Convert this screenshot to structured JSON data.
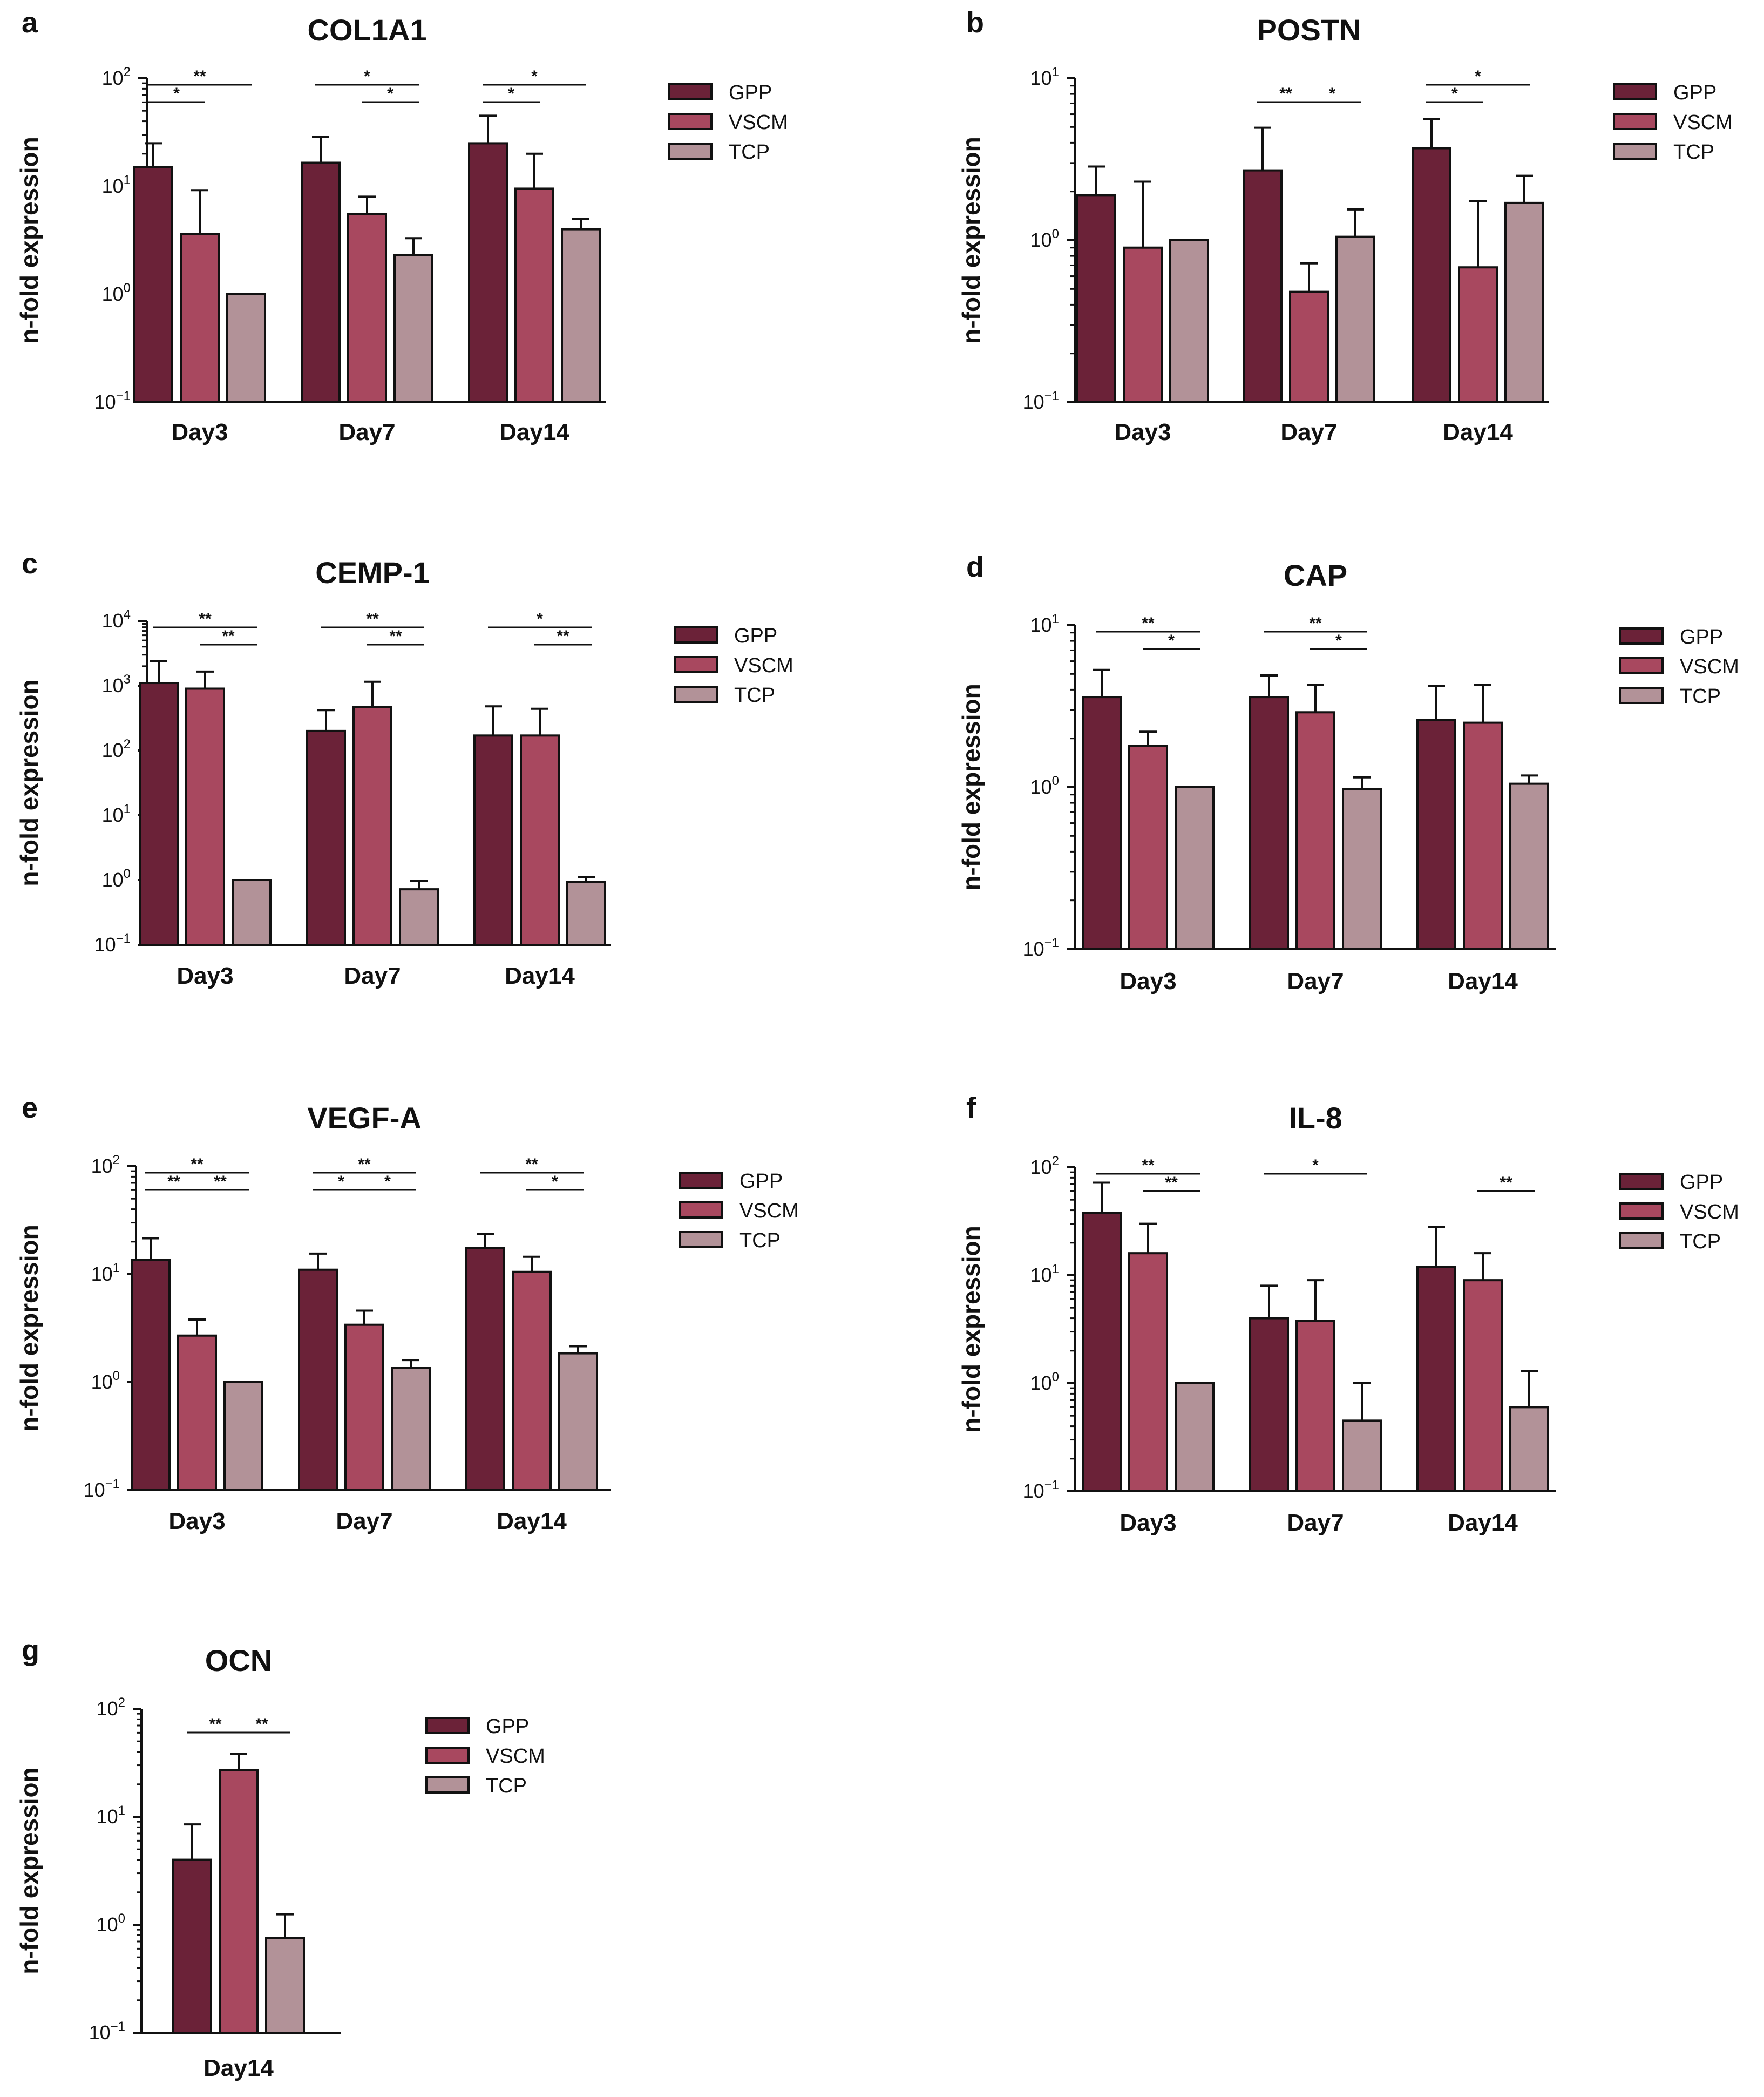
{
  "colors": {
    "GPP": "#6b2238",
    "VSCM": "#a8485f",
    "TCP": "#b29298"
  },
  "legend": [
    "GPP",
    "VSCM",
    "TCP"
  ],
  "chart_data": [
    {
      "panel": "a",
      "title": "COL1A1",
      "type": "bar",
      "ylabel": "n-fold expression",
      "yscale": "log",
      "ylim": [
        0.1,
        100
      ],
      "yticks": [
        {
          "base": "10",
          "exp": "2"
        },
        {
          "base": "10",
          "exp": "1"
        },
        {
          "base": "10",
          "exp": "0"
        },
        {
          "base": "10",
          "exp": "−1"
        }
      ],
      "categories": [
        "Day3",
        "Day7",
        "Day14"
      ],
      "series": [
        {
          "name": "GPP",
          "values": [
            15,
            16.5,
            25
          ],
          "errors": [
            25,
            28.5,
            45
          ]
        },
        {
          "name": "VSCM",
          "values": [
            3.6,
            5.5,
            9.5
          ],
          "errors": [
            9.2,
            8,
            20
          ]
        },
        {
          "name": "TCP",
          "values": [
            1,
            2.3,
            4
          ],
          "errors": [
            1,
            3.3,
            5
          ]
        }
      ],
      "significance": [
        {
          "group": 0,
          "from": 0,
          "to": 2,
          "label": "**"
        },
        {
          "group": 0,
          "from": 0,
          "to": 1,
          "label": "*"
        },
        {
          "group": 1,
          "from": 0,
          "to": 2,
          "label": "*"
        },
        {
          "group": 1,
          "from": 1,
          "to": 2,
          "label": "*"
        },
        {
          "group": 2,
          "from": 0,
          "to": 2,
          "label": "*"
        },
        {
          "group": 2,
          "from": 0,
          "to": 1,
          "label": "*"
        }
      ]
    },
    {
      "panel": "b",
      "title": "POSTN",
      "type": "bar",
      "ylabel": "n-fold expression",
      "yscale": "log",
      "ylim": [
        0.1,
        10
      ],
      "yticks": [
        {
          "base": "10",
          "exp": "1"
        },
        {
          "base": "10",
          "exp": "0"
        },
        {
          "base": "10",
          "exp": "−1"
        }
      ],
      "categories": [
        "Day3",
        "Day7",
        "Day14"
      ],
      "series": [
        {
          "name": "GPP",
          "values": [
            1.9,
            2.7,
            3.7
          ],
          "errors": [
            2.85,
            4.95,
            5.6
          ]
        },
        {
          "name": "VSCM",
          "values": [
            0.9,
            0.48,
            0.68
          ],
          "errors": [
            2.3,
            0.72,
            1.75
          ]
        },
        {
          "name": "TCP",
          "values": [
            1,
            1.05,
            1.7
          ],
          "errors": [
            1,
            1.55,
            2.5
          ]
        }
      ],
      "significance": [
        {
          "group": 1,
          "from": 0,
          "to": 1,
          "label": "**"
        },
        {
          "group": 1,
          "from": 1,
          "to": 2,
          "label": "*"
        },
        {
          "group": 2,
          "from": 0,
          "to": 2,
          "label": "*"
        },
        {
          "group": 2,
          "from": 0,
          "to": 1,
          "label": "*"
        }
      ]
    },
    {
      "panel": "c",
      "title": "CEMP-1",
      "type": "bar",
      "ylabel": "n-fold expression",
      "yscale": "log",
      "ylim": [
        0.1,
        10000
      ],
      "yticks": [
        {
          "base": "10",
          "exp": "4"
        },
        {
          "base": "10",
          "exp": "3"
        },
        {
          "base": "10",
          "exp": "2"
        },
        {
          "base": "10",
          "exp": "1"
        },
        {
          "base": "10",
          "exp": "0"
        },
        {
          "base": "10",
          "exp": "−1"
        }
      ],
      "categories": [
        "Day3",
        "Day7",
        "Day14"
      ],
      "series": [
        {
          "name": "GPP",
          "values": [
            1100,
            200,
            170
          ],
          "errors": [
            2400,
            420,
            480
          ]
        },
        {
          "name": "VSCM",
          "values": [
            900,
            470,
            170
          ],
          "errors": [
            1650,
            1150,
            440
          ]
        },
        {
          "name": "TCP",
          "values": [
            1,
            0.72,
            0.93
          ],
          "errors": [
            1,
            0.98,
            1.12
          ]
        }
      ],
      "significance": [
        {
          "group": 0,
          "from": 0,
          "to": 2,
          "label": "**"
        },
        {
          "group": 0,
          "from": 1,
          "to": 2,
          "label": "**"
        },
        {
          "group": 1,
          "from": 0,
          "to": 2,
          "label": "**"
        },
        {
          "group": 1,
          "from": 1,
          "to": 2,
          "label": "**"
        },
        {
          "group": 2,
          "from": 0,
          "to": 2,
          "label": "*"
        },
        {
          "group": 2,
          "from": 1,
          "to": 2,
          "label": "**"
        }
      ]
    },
    {
      "panel": "d",
      "title": "CAP",
      "type": "bar",
      "ylabel": "n-fold expression",
      "yscale": "log",
      "ylim": [
        0.1,
        10
      ],
      "yticks": [
        {
          "base": "10",
          "exp": "1"
        },
        {
          "base": "10",
          "exp": "0"
        },
        {
          "base": "10",
          "exp": "−1"
        }
      ],
      "categories": [
        "Day3",
        "Day7",
        "Day14"
      ],
      "series": [
        {
          "name": "GPP",
          "values": [
            3.6,
            3.6,
            2.6
          ],
          "errors": [
            5.3,
            4.9,
            4.2
          ]
        },
        {
          "name": "VSCM",
          "values": [
            1.8,
            2.9,
            2.5
          ],
          "errors": [
            2.2,
            4.3,
            4.3
          ]
        },
        {
          "name": "TCP",
          "values": [
            1,
            0.97,
            1.05
          ],
          "errors": [
            1,
            1.15,
            1.18
          ]
        }
      ],
      "significance": [
        {
          "group": 0,
          "from": 0,
          "to": 2,
          "label": "**"
        },
        {
          "group": 0,
          "from": 1,
          "to": 2,
          "label": "*"
        },
        {
          "group": 1,
          "from": 0,
          "to": 2,
          "label": "**"
        },
        {
          "group": 1,
          "from": 1,
          "to": 2,
          "label": "*"
        }
      ]
    },
    {
      "panel": "e",
      "title": "VEGF-A",
      "type": "bar",
      "ylabel": "n-fold expression",
      "yscale": "log",
      "ylim": [
        0.1,
        100
      ],
      "yticks": [
        {
          "base": "10",
          "exp": "2"
        },
        {
          "base": "10",
          "exp": "1"
        },
        {
          "base": "10",
          "exp": "0"
        },
        {
          "base": "10",
          "exp": "−1"
        }
      ],
      "categories": [
        "Day3",
        "Day7",
        "Day14"
      ],
      "series": [
        {
          "name": "GPP",
          "values": [
            13.5,
            11,
            17.5
          ],
          "errors": [
            21.5,
            15.5,
            23.5
          ]
        },
        {
          "name": "VSCM",
          "values": [
            2.7,
            3.4,
            10.5
          ],
          "errors": [
            3.8,
            4.6,
            14.5
          ]
        },
        {
          "name": "TCP",
          "values": [
            1,
            1.35,
            1.85
          ],
          "errors": [
            1,
            1.6,
            2.15
          ]
        }
      ],
      "significance": [
        {
          "group": 0,
          "from": 0,
          "to": 2,
          "label": "**"
        },
        {
          "group": 0,
          "from": 0,
          "to": 1,
          "label": "**"
        },
        {
          "group": 0,
          "from": 1,
          "to": 2,
          "label": "**"
        },
        {
          "group": 1,
          "from": 0,
          "to": 2,
          "label": "**"
        },
        {
          "group": 1,
          "from": 0,
          "to": 1,
          "label": "*"
        },
        {
          "group": 1,
          "from": 1,
          "to": 2,
          "label": "*"
        },
        {
          "group": 2,
          "from": 0,
          "to": 2,
          "label": "**"
        },
        {
          "group": 2,
          "from": 1,
          "to": 2,
          "label": "*"
        }
      ]
    },
    {
      "panel": "f",
      "title": "IL-8",
      "type": "bar",
      "ylabel": "n-fold expression",
      "yscale": "log",
      "ylim": [
        0.1,
        100
      ],
      "yticks": [
        {
          "base": "10",
          "exp": "2"
        },
        {
          "base": "10",
          "exp": "1"
        },
        {
          "base": "10",
          "exp": "0"
        },
        {
          "base": "10",
          "exp": "−1"
        }
      ],
      "categories": [
        "Day3",
        "Day7",
        "Day14"
      ],
      "series": [
        {
          "name": "GPP",
          "values": [
            38,
            4,
            12
          ],
          "errors": [
            72,
            8,
            28
          ]
        },
        {
          "name": "VSCM",
          "values": [
            16,
            3.8,
            9
          ],
          "errors": [
            30,
            9,
            16
          ]
        },
        {
          "name": "TCP",
          "values": [
            1,
            0.45,
            0.6
          ],
          "errors": [
            1,
            1,
            1.3
          ]
        }
      ],
      "significance": [
        {
          "group": 0,
          "from": 0,
          "to": 2,
          "label": "**"
        },
        {
          "group": 0,
          "from": 1,
          "to": 2,
          "label": "**"
        },
        {
          "group": 1,
          "from": 0,
          "to": 2,
          "label": "*"
        },
        {
          "group": 2,
          "from": 1,
          "to": 2,
          "label": "**"
        }
      ]
    },
    {
      "panel": "g",
      "title": "OCN",
      "type": "bar",
      "ylabel": "n-fold expression",
      "yscale": "log",
      "ylim": [
        0.1,
        100
      ],
      "yticks": [
        {
          "base": "10",
          "exp": "2"
        },
        {
          "base": "10",
          "exp": "1"
        },
        {
          "base": "10",
          "exp": "0"
        },
        {
          "base": "10",
          "exp": "−1"
        }
      ],
      "categories": [
        "Day14"
      ],
      "series": [
        {
          "name": "GPP",
          "values": [
            4
          ],
          "errors": [
            8.5
          ]
        },
        {
          "name": "VSCM",
          "values": [
            27
          ],
          "errors": [
            38
          ]
        },
        {
          "name": "TCP",
          "values": [
            0.75
          ],
          "errors": [
            1.25
          ]
        }
      ],
      "significance": [
        {
          "group": 0,
          "from": 0,
          "to": 1,
          "label": "**"
        },
        {
          "group": 0,
          "from": 1,
          "to": 2,
          "label": "**"
        }
      ]
    }
  ]
}
